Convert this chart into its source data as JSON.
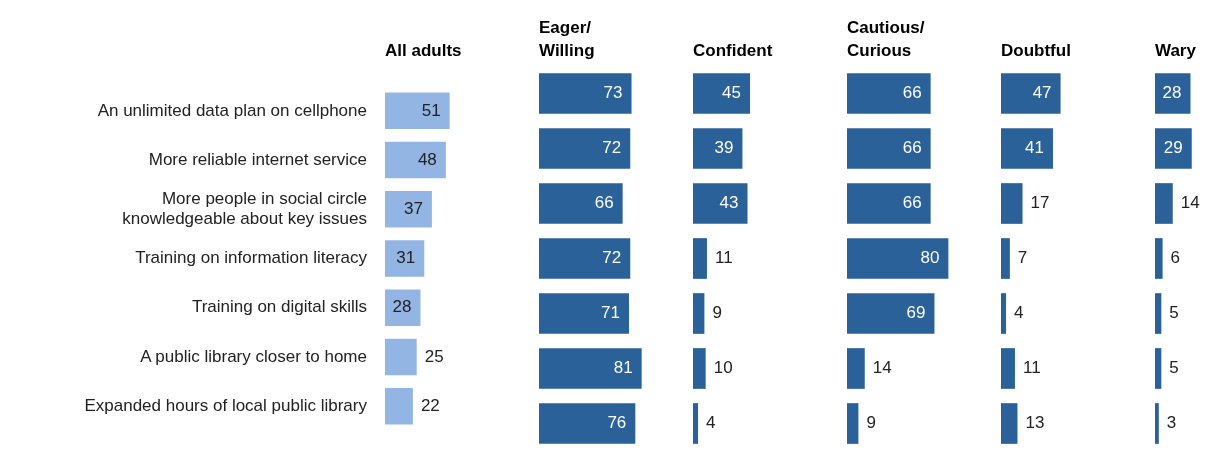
{
  "chart_data": [
    {
      "type": "bar",
      "orientation": "horizontal",
      "title": "All adults",
      "categories": [
        "An unlimited data plan on cellphone",
        "More reliable internet service",
        "More people in social circle\nknowledgeable about key issues",
        "Training on information literacy",
        "Training on digital skills",
        "A public library closer to home",
        "Expanded hours of local public library"
      ],
      "values": [
        51,
        48,
        37,
        31,
        28,
        25,
        22
      ],
      "color": "#92b5e3",
      "data_labels": true,
      "tick_labels": "y",
      "legend": false
    },
    {
      "type": "bar",
      "orientation": "horizontal",
      "title": "Eager/\nWilling",
      "categories": [
        null,
        null,
        null,
        null,
        null,
        null,
        null
      ],
      "values": [
        73,
        72,
        66,
        72,
        71,
        81,
        76
      ],
      "color": "#2b6199",
      "data_labels": true,
      "tick_labels": false,
      "legend": false
    },
    {
      "type": "bar",
      "orientation": "horizontal",
      "title": "Confident",
      "categories": [
        null,
        null,
        null,
        null,
        null,
        null,
        null
      ],
      "values": [
        45,
        39,
        43,
        11,
        9,
        10,
        4
      ],
      "color": "#2b6199",
      "data_labels": true,
      "tick_labels": false,
      "legend": false
    },
    {
      "type": "bar",
      "orientation": "horizontal",
      "title": "Cautious/\nCurious",
      "categories": [
        null,
        null,
        null,
        null,
        null,
        null,
        null
      ],
      "values": [
        66,
        66,
        66,
        80,
        69,
        14,
        9
      ],
      "color": "#2b6199",
      "data_labels": true,
      "tick_labels": false,
      "legend": false
    },
    {
      "type": "bar",
      "orientation": "horizontal",
      "title": "Doubtful",
      "categories": [
        null,
        null,
        null,
        null,
        null,
        null,
        null
      ],
      "values": [
        47,
        41,
        17,
        7,
        4,
        11,
        13
      ],
      "color": "#2b6199",
      "data_labels": true,
      "tick_labels": false,
      "legend": false
    },
    {
      "type": "bar",
      "orientation": "horizontal",
      "title": "Wary",
      "categories": [
        null,
        null,
        null,
        null,
        null,
        null,
        null
      ],
      "values": [
        28,
        29,
        14,
        6,
        5,
        5,
        3
      ],
      "color": "#2b6199",
      "data_labels": true,
      "tick_labels": false,
      "legend": false
    }
  ]
}
